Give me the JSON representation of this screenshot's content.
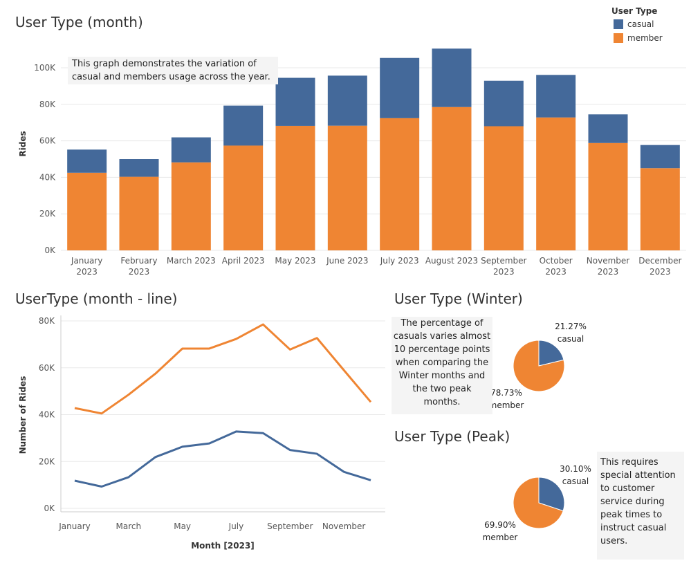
{
  "colors": {
    "casual": "#44699a",
    "member": "#ef8533",
    "grid": "#e8e8e8",
    "axis_text": "#555555",
    "note_bg": "#f4f4f4"
  },
  "legend": {
    "title": "User Type",
    "items": [
      "casual",
      "member"
    ]
  },
  "notes": {
    "bar": "This graph demonstrates the variation of casual and members usage across the year.",
    "winter": "The percentage of casuals varies almost 10 percentage points when comparing the Winter months and the two peak months.",
    "peak": "This requires special attention to customer service during peak times to instruct casual users."
  },
  "chart_data": [
    {
      "type": "bar",
      "title": "User Type (month)",
      "ylabel": "Rides",
      "xlabel": "",
      "stacked": true,
      "ylim": [
        0,
        110000
      ],
      "yticks": [
        "0K",
        "20K",
        "40K",
        "60K",
        "80K",
        "100K"
      ],
      "yticks_values": [
        0,
        20000,
        40000,
        60000,
        80000,
        100000
      ],
      "categories": [
        "January 2023",
        "February 2023",
        "March 2023",
        "April 2023",
        "May 2023",
        "June 2023",
        "July 2023",
        "August 2023",
        "September 2023",
        "October 2023",
        "November 2023",
        "December 2023"
      ],
      "category_labels": [
        [
          "January",
          "2023"
        ],
        [
          "February",
          "2023"
        ],
        [
          "March 2023"
        ],
        [
          "April 2023"
        ],
        [
          "May 2023"
        ],
        [
          "June 2023"
        ],
        [
          "July 2023"
        ],
        [
          "August 2023"
        ],
        [
          "September",
          "2023"
        ],
        [
          "October",
          "2023"
        ],
        [
          "November",
          "2023"
        ],
        [
          "December",
          "2023"
        ]
      ],
      "series": [
        {
          "name": "member",
          "values": [
            42500,
            40300,
            48200,
            57400,
            68200,
            68300,
            72400,
            78500,
            68000,
            72800,
            58800,
            45000
          ]
        },
        {
          "name": "casual",
          "values": [
            12700,
            9700,
            13700,
            21900,
            26300,
            27400,
            33000,
            32000,
            24900,
            23300,
            15700,
            12700
          ]
        }
      ],
      "grid": true,
      "legend": "top-right"
    },
    {
      "type": "line",
      "title": "UserType (month - line)",
      "xlabel": "Month [2023]",
      "ylabel": "Number of Rides",
      "ylim": [
        0,
        80000
      ],
      "yticks": [
        "0K",
        "20K",
        "40K",
        "60K",
        "80K"
      ],
      "yticks_values": [
        0,
        20000,
        40000,
        60000,
        80000
      ],
      "x": [
        1,
        2,
        3,
        4,
        5,
        6,
        7,
        8,
        9,
        10,
        11,
        12
      ],
      "xticks": [
        "January",
        "March",
        "May",
        "July",
        "September",
        "November"
      ],
      "xticks_values": [
        1,
        3,
        5,
        7,
        9,
        11
      ],
      "series": [
        {
          "name": "member",
          "values": [
            42800,
            40500,
            48500,
            57500,
            68200,
            68200,
            72300,
            78500,
            67800,
            72700,
            59000,
            45400
          ]
        },
        {
          "name": "casual",
          "values": [
            11800,
            9300,
            13300,
            21900,
            26300,
            27700,
            32800,
            32100,
            24900,
            23300,
            15600,
            12000
          ]
        }
      ],
      "grid": true
    },
    {
      "type": "pie",
      "title": "User Type (Winter)",
      "slices": [
        {
          "name": "casual",
          "value": 21.27,
          "label": "21.27%"
        },
        {
          "name": "member",
          "value": 78.73,
          "label": "78.73%"
        }
      ]
    },
    {
      "type": "pie",
      "title": "User Type (Peak)",
      "slices": [
        {
          "name": "casual",
          "value": 30.1,
          "label": "30.10%"
        },
        {
          "name": "member",
          "value": 69.9,
          "label": "69.90%"
        }
      ]
    }
  ]
}
